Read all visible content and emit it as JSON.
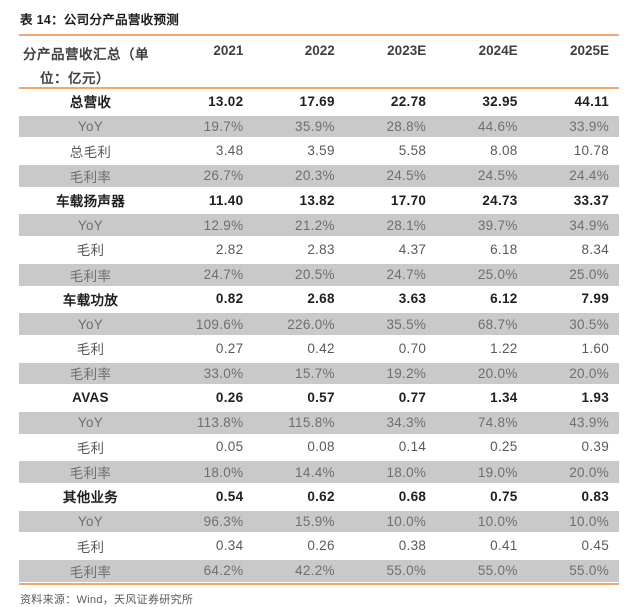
{
  "title": "表 14：公司分产品营收预测",
  "source": "资料来源：Wind，天风证券研究所",
  "colors": {
    "accent_line": "#F2A76F",
    "shaded_row_bg": "#C9C9C9"
  },
  "table": {
    "header": {
      "label_line1": "分产品营收汇总（单",
      "label_line2": "位：亿元）",
      "years": [
        "2021",
        "2022",
        "2023E",
        "2024E",
        "2025E"
      ]
    },
    "rows": [
      {
        "label": "总营收",
        "style": "bold",
        "values": [
          "13.02",
          "17.69",
          "22.78",
          "32.95",
          "44.11"
        ]
      },
      {
        "label": "YoY",
        "style": "shaded",
        "values": [
          "19.7%",
          "35.9%",
          "28.8%",
          "44.6%",
          "33.9%"
        ]
      },
      {
        "label": "总毛利",
        "style": "plain",
        "values": [
          "3.48",
          "3.59",
          "5.58",
          "8.08",
          "10.78"
        ]
      },
      {
        "label": "毛利率",
        "style": "shaded",
        "values": [
          "26.7%",
          "20.3%",
          "24.5%",
          "24.5%",
          "24.4%"
        ]
      },
      {
        "label": "车载扬声器",
        "style": "bold",
        "values": [
          "11.40",
          "13.82",
          "17.70",
          "24.73",
          "33.37"
        ]
      },
      {
        "label": "YoY",
        "style": "shaded",
        "values": [
          "12.9%",
          "21.2%",
          "28.1%",
          "39.7%",
          "34.9%"
        ]
      },
      {
        "label": "毛利",
        "style": "plain",
        "values": [
          "2.82",
          "2.83",
          "4.37",
          "6.18",
          "8.34"
        ]
      },
      {
        "label": "毛利率",
        "style": "shaded",
        "values": [
          "24.7%",
          "20.5%",
          "24.7%",
          "25.0%",
          "25.0%"
        ]
      },
      {
        "label": "车载功放",
        "style": "bold",
        "values": [
          "0.82",
          "2.68",
          "3.63",
          "6.12",
          "7.99"
        ]
      },
      {
        "label": "YoY",
        "style": "shaded",
        "values": [
          "109.6%",
          "226.0%",
          "35.5%",
          "68.7%",
          "30.5%"
        ]
      },
      {
        "label": "毛利",
        "style": "plain",
        "values": [
          "0.27",
          "0.42",
          "0.70",
          "1.22",
          "1.60"
        ]
      },
      {
        "label": "毛利率",
        "style": "shaded",
        "values": [
          "33.0%",
          "15.7%",
          "19.2%",
          "20.0%",
          "20.0%"
        ]
      },
      {
        "label": "AVAS",
        "style": "bold",
        "values": [
          "0.26",
          "0.57",
          "0.77",
          "1.34",
          "1.93"
        ]
      },
      {
        "label": "YoY",
        "style": "shaded",
        "values": [
          "113.8%",
          "115.8%",
          "34.3%",
          "74.8%",
          "43.9%"
        ]
      },
      {
        "label": "毛利",
        "style": "plain",
        "values": [
          "0.05",
          "0.08",
          "0.14",
          "0.25",
          "0.39"
        ]
      },
      {
        "label": "毛利率",
        "style": "shaded",
        "values": [
          "18.0%",
          "14.4%",
          "18.0%",
          "19.0%",
          "20.0%"
        ]
      },
      {
        "label": "其他业务",
        "style": "bold",
        "values": [
          "0.54",
          "0.62",
          "0.68",
          "0.75",
          "0.83"
        ]
      },
      {
        "label": "YoY",
        "style": "shaded",
        "values": [
          "96.3%",
          "15.9%",
          "10.0%",
          "10.0%",
          "10.0%"
        ]
      },
      {
        "label": "毛利",
        "style": "plain",
        "values": [
          "0.34",
          "0.26",
          "0.38",
          "0.41",
          "0.45"
        ]
      },
      {
        "label": "毛利率",
        "style": "shaded",
        "values": [
          "64.2%",
          "42.2%",
          "55.0%",
          "55.0%",
          "55.0%"
        ]
      }
    ]
  }
}
